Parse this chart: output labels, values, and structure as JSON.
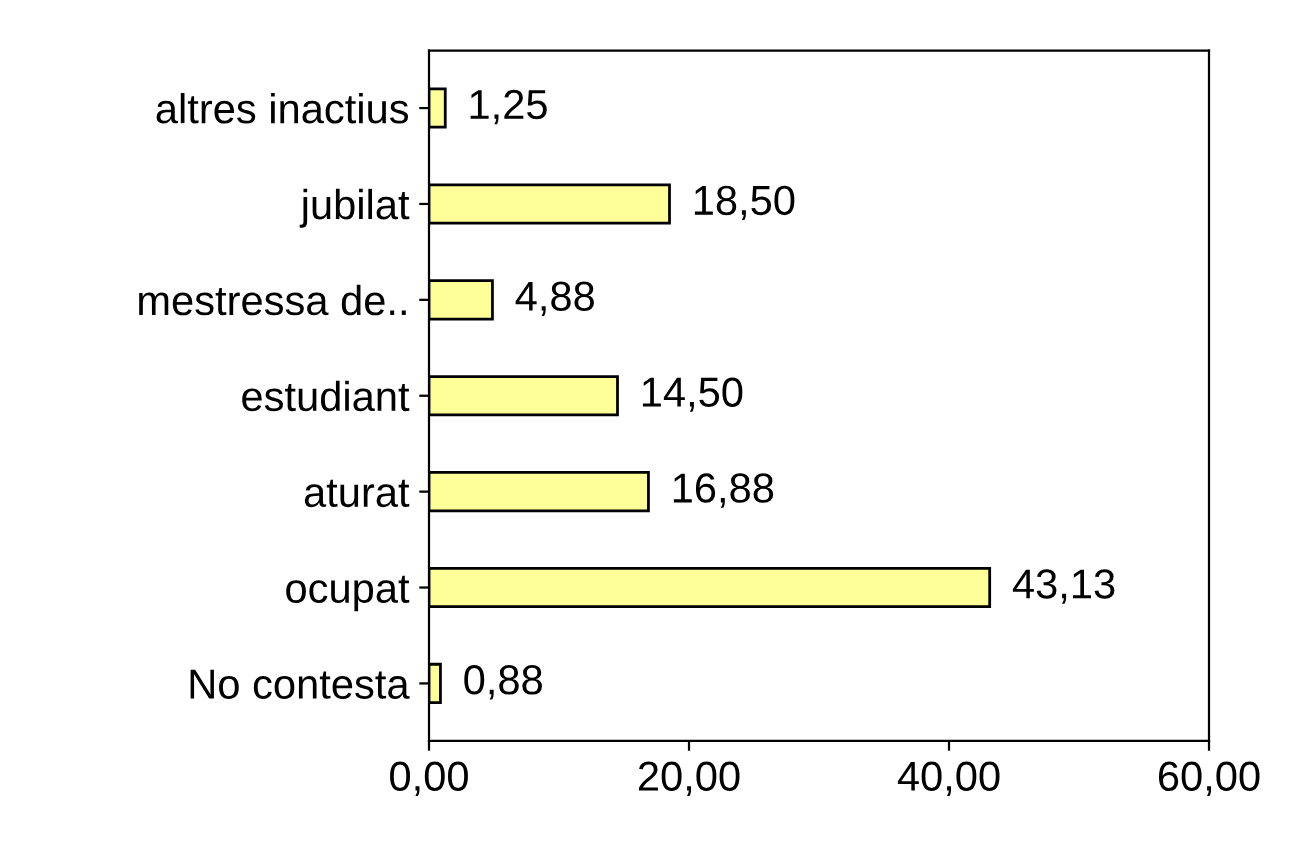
{
  "chart_data": {
    "type": "bar",
    "orientation": "horizontal",
    "categories": [
      "altres inactius",
      "jubilat",
      "mestressa de..",
      "estudiant",
      "aturat",
      "ocupat",
      "No contesta"
    ],
    "values": [
      1.25,
      18.5,
      4.88,
      14.5,
      16.88,
      43.13,
      0.88
    ],
    "value_labels": [
      "1,25",
      "18,50",
      "4,88",
      "14,50",
      "16,88",
      "43,13",
      "0,88"
    ],
    "color": "#ffff99",
    "xlim": [
      0,
      60
    ],
    "xticks": [
      {
        "value": 0,
        "label": "0,00"
      },
      {
        "value": 20,
        "label": "20,00"
      },
      {
        "value": 40,
        "label": "40,00"
      },
      {
        "value": 60,
        "label": "60,00"
      }
    ],
    "grid": false
  }
}
